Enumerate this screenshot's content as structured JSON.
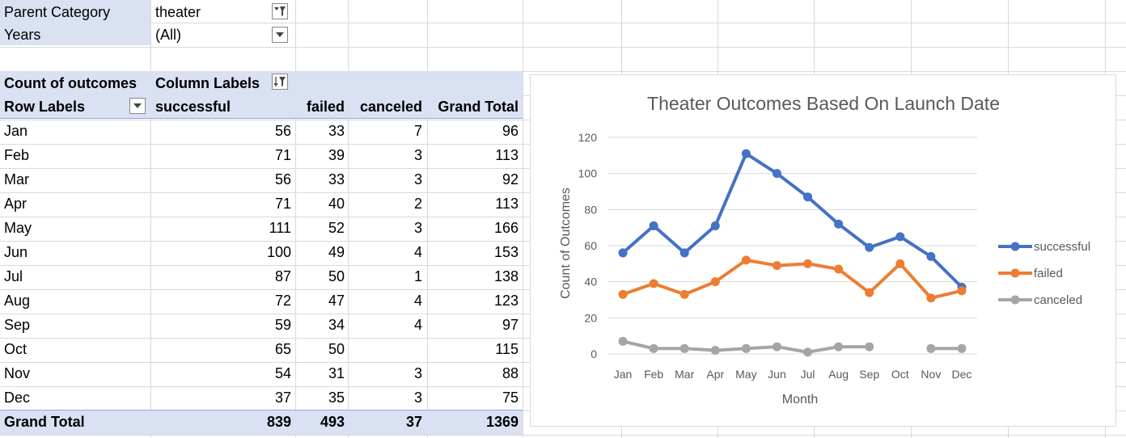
{
  "filters": [
    {
      "label": "Parent Category",
      "value": "theater",
      "icon": "filter-applied-icon"
    },
    {
      "label": "Years",
      "value": "(All)",
      "icon": "dropdown-icon"
    }
  ],
  "pivot": {
    "count_label": "Count of outcomes",
    "column_labels": "Column Labels",
    "row_labels": "Row Labels",
    "headers": [
      "successful",
      "failed",
      "canceled",
      "Grand Total"
    ],
    "rows": [
      {
        "label": "Jan",
        "values": [
          "56",
          "33",
          "7",
          "96"
        ]
      },
      {
        "label": "Feb",
        "values": [
          "71",
          "39",
          "3",
          "113"
        ]
      },
      {
        "label": "Mar",
        "values": [
          "56",
          "33",
          "3",
          "92"
        ]
      },
      {
        "label": "Apr",
        "values": [
          "71",
          "40",
          "2",
          "113"
        ]
      },
      {
        "label": "May",
        "values": [
          "111",
          "52",
          "3",
          "166"
        ]
      },
      {
        "label": "Jun",
        "values": [
          "100",
          "49",
          "4",
          "153"
        ]
      },
      {
        "label": "Jul",
        "values": [
          "87",
          "50",
          "1",
          "138"
        ]
      },
      {
        "label": "Aug",
        "values": [
          "72",
          "47",
          "4",
          "123"
        ]
      },
      {
        "label": "Sep",
        "values": [
          "59",
          "34",
          "4",
          "97"
        ]
      },
      {
        "label": "Oct",
        "values": [
          "65",
          "50",
          "",
          "115"
        ]
      },
      {
        "label": "Nov",
        "values": [
          "54",
          "31",
          "3",
          "88"
        ]
      },
      {
        "label": "Dec",
        "values": [
          "37",
          "35",
          "3",
          "75"
        ]
      }
    ],
    "grand_total": {
      "label": "Grand Total",
      "values": [
        "839",
        "493",
        "37",
        "1369"
      ]
    }
  },
  "colors": {
    "band": "#d9e1f2",
    "successful": "#4472c4",
    "failed": "#ed7d31",
    "canceled": "#a5a5a5"
  },
  "chart_data": {
    "type": "line",
    "title": "Theater Outcomes Based On Launch Date",
    "xlabel": "Month",
    "ylabel": "Count of Outcomes",
    "categories": [
      "Jan",
      "Feb",
      "Mar",
      "Apr",
      "May",
      "Jun",
      "Jul",
      "Aug",
      "Sep",
      "Oct",
      "Nov",
      "Dec"
    ],
    "ylim": [
      0,
      120
    ],
    "yticks": [
      "0",
      "20",
      "40",
      "60",
      "80",
      "100",
      "120"
    ],
    "grid": true,
    "legend": "right",
    "series": [
      {
        "name": "successful",
        "values": [
          56,
          71,
          56,
          71,
          111,
          100,
          87,
          72,
          59,
          65,
          54,
          37
        ]
      },
      {
        "name": "failed",
        "values": [
          33,
          39,
          33,
          40,
          52,
          49,
          50,
          47,
          34,
          50,
          31,
          35
        ]
      },
      {
        "name": "canceled",
        "values": [
          7,
          3,
          3,
          2,
          3,
          4,
          1,
          4,
          4,
          null,
          3,
          3
        ]
      }
    ]
  }
}
